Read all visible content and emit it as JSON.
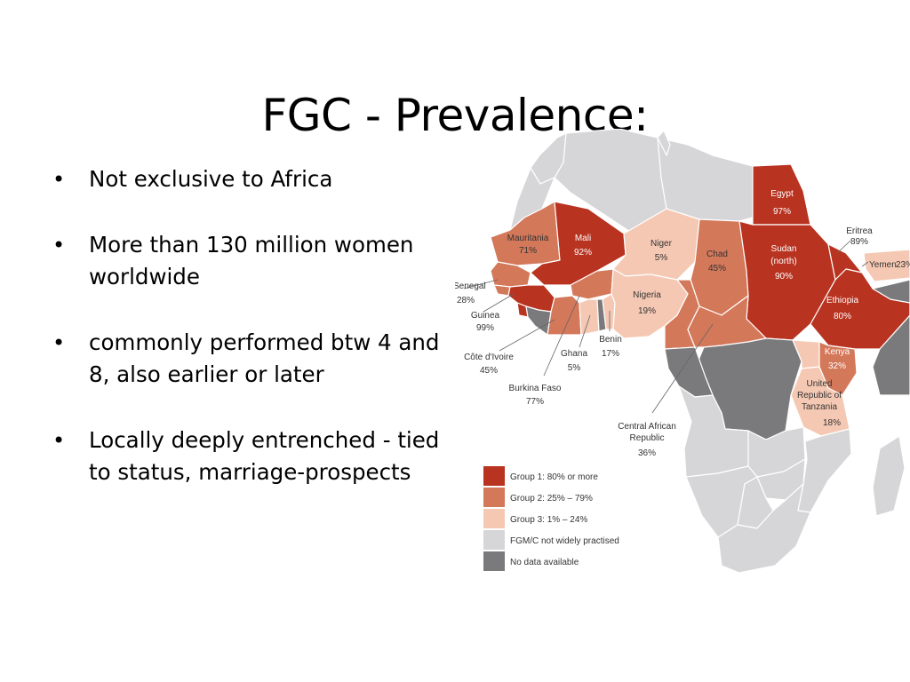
{
  "slide": {
    "title": "FGC - Prevalence:",
    "bullets": [
      {
        "text": "Not exclusive to Africa"
      },
      {
        "text": "More than 130 million women worldwide"
      },
      {
        "text": "commonly performed btw 4 and 8, also earlier or later"
      },
      {
        "text": "Locally deeply entrenched - tied to status, marriage-prospects"
      }
    ]
  },
  "map": {
    "colors": {
      "group1": "#b83320",
      "group2": "#d4785a",
      "group3": "#f5c8b3",
      "not_practised": "#d6d6d8",
      "no_data": "#7a7a7c",
      "border": "#ffffff"
    },
    "countries": {
      "egypt": {
        "name": "Egypt",
        "value": "97%"
      },
      "eritrea": {
        "name": "Eritrea",
        "value": "89%"
      },
      "yemen": {
        "name": "Yemen",
        "value": "23%"
      },
      "mauritania": {
        "name": "Mauritania",
        "value": "71%"
      },
      "mali": {
        "name": "Mali",
        "value": "92%"
      },
      "niger": {
        "name": "Niger",
        "value": "5%"
      },
      "chad": {
        "name": "Chad",
        "value": "45%"
      },
      "sudan": {
        "name": "Sudan",
        "name2": "(north)",
        "value": "90%"
      },
      "senegal": {
        "name": "Senegal",
        "value": "28%"
      },
      "ethiopia": {
        "name": "Ethiopia",
        "value": "80%"
      },
      "guinea": {
        "name": "Guinea",
        "value": "99%"
      },
      "nigeria": {
        "name": "Nigeria",
        "value": "19%"
      },
      "benin": {
        "name": "Benin",
        "value": "17%"
      },
      "ghana": {
        "name": "Ghana",
        "value": "5%"
      },
      "cote_divoire": {
        "name": "Côte d'Ivoire",
        "value": "45%"
      },
      "kenya": {
        "name": "Kenya",
        "value": "32%"
      },
      "burkina_faso": {
        "name": "Burkina Faso",
        "value": "77%"
      },
      "tanzania": {
        "name": "United",
        "name2": "Republic of",
        "name3": "Tanzania",
        "value": "18%"
      },
      "car": {
        "name": "Central African",
        "name2": "Republic",
        "value": "36%"
      }
    },
    "legend": [
      {
        "label": "Group 1: 80% or more",
        "color": "#b83320"
      },
      {
        "label": "Group 2: 25% – 79%",
        "color": "#d4785a"
      },
      {
        "label": "Group 3: 1% – 24%",
        "color": "#f5c8b3"
      },
      {
        "label": "FGM/C not widely practised",
        "color": "#d6d6d8"
      },
      {
        "label": "No data available",
        "color": "#7a7a7c"
      }
    ]
  }
}
